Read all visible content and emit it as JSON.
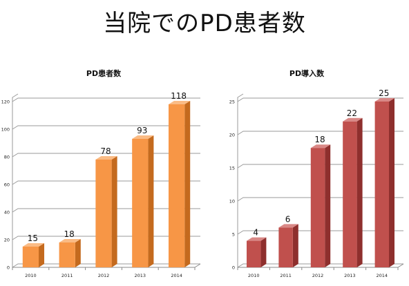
{
  "page": {
    "title": "当院でのPD患者数"
  },
  "chart_data": [
    {
      "type": "bar",
      "title": "PD患者数",
      "categories": [
        "2010",
        "2011",
        "2012",
        "2013",
        "2014"
      ],
      "values": [
        15,
        18,
        78,
        93,
        118
      ],
      "ylim": [
        0,
        120
      ],
      "yticks": [
        0,
        20,
        40,
        60,
        80,
        100,
        120
      ],
      "grid": true,
      "legend": "none",
      "colors": {
        "front": "#F79646",
        "side": "#C46A1E",
        "top": "#FABB85"
      }
    },
    {
      "type": "bar",
      "title": "PD導入数",
      "categories": [
        "2010",
        "2011",
        "2012",
        "2013",
        "2014"
      ],
      "values": [
        4,
        6,
        18,
        22,
        25
      ],
      "ylim": [
        0,
        25
      ],
      "yticks": [
        0,
        5,
        10,
        15,
        20,
        25
      ],
      "grid": true,
      "legend": "none",
      "colors": {
        "front": "#C0504D",
        "side": "#8E2F2D",
        "top": "#D98886"
      }
    }
  ]
}
